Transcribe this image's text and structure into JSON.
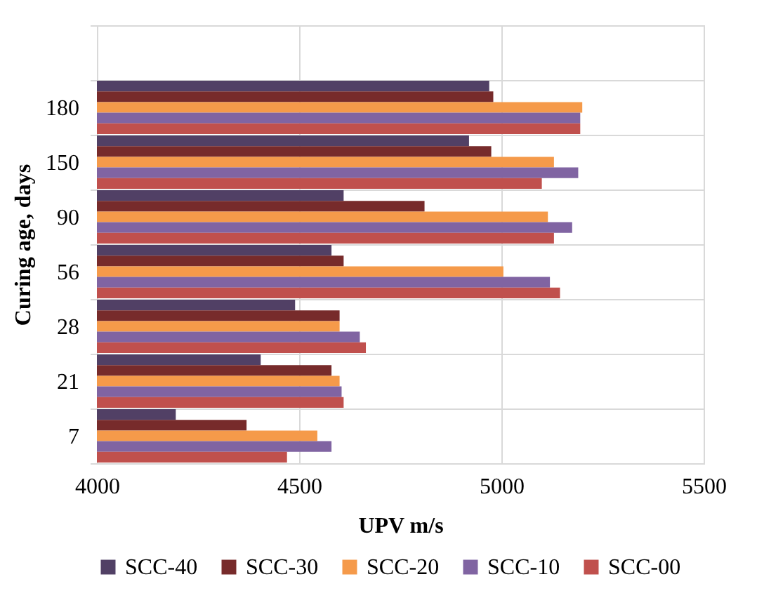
{
  "chart_data": {
    "type": "bar",
    "orientation": "horizontal",
    "xlabel": "UPV m/s",
    "ylabel": "Curing age, days",
    "categories": [
      null,
      "180",
      "150",
      "90",
      "56",
      "28",
      "21",
      "7"
    ],
    "series": [
      {
        "name": "SCC-40",
        "color": "#514065",
        "values": [
          null,
          4970,
          4920,
          4610,
          4580,
          4490,
          4405,
          4195
        ]
      },
      {
        "name": "SCC-30",
        "color": "#772b2b",
        "values": [
          null,
          4980,
          4975,
          4810,
          4610,
          4600,
          4580,
          4370
        ]
      },
      {
        "name": "SCC-20",
        "color": "#f59a4a",
        "values": [
          null,
          5200,
          5130,
          5115,
          5005,
          4600,
          4600,
          4545
        ]
      },
      {
        "name": "SCC-10",
        "color": "#8064a2",
        "values": [
          null,
          5195,
          5190,
          5175,
          5120,
          4650,
          4605,
          4580
        ]
      },
      {
        "name": "SCC-00",
        "color": "#c0504d",
        "values": [
          null,
          5195,
          5100,
          5130,
          5145,
          4665,
          4610,
          4470
        ]
      }
    ],
    "xlim": [
      4000,
      5500
    ],
    "xticks": [
      4000,
      4500,
      5000,
      5500
    ],
    "grid": true,
    "legend": "bottom"
  }
}
